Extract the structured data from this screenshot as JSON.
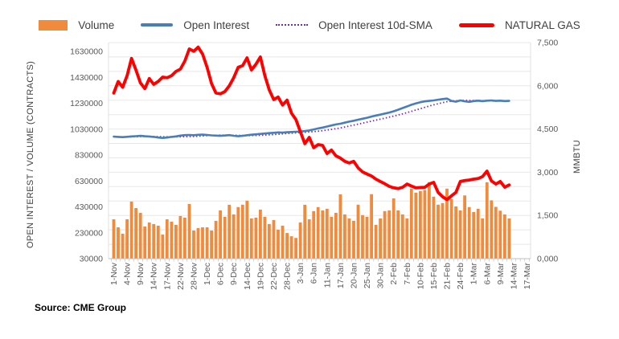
{
  "legend": [
    {
      "label": "Volume",
      "swatch": "bar-swatch",
      "color": "#F08A3C"
    },
    {
      "label": "Open Interest",
      "swatch": "line-swatch",
      "color": "#4A7EBB"
    },
    {
      "label": "Open Interest 10d-SMA",
      "swatch": "dotted-swatch",
      "color": "#7030A0"
    },
    {
      "label": "NATURAL GAS",
      "swatch": "thick-line-swatch",
      "color": "#FF0000"
    }
  ],
  "source_note": "Source: CME Group",
  "chart_data": {
    "type": "combo",
    "title": "",
    "left_axis": {
      "title": "OPEN INTEREST / VOLUME (CONTRACTS)",
      "ticks": [
        30000,
        230000,
        430000,
        630000,
        830000,
        1030000,
        1230000,
        1430000,
        1630000
      ],
      "min": 30000,
      "max": 1630000,
      "grid": false
    },
    "right_axis": {
      "title": "MMBTU",
      "tick_labels": [
        "0,000",
        "1,500",
        "3,000",
        "4,500",
        "6,000",
        "7,500"
      ],
      "tick_values": [
        0,
        1500,
        3000,
        4500,
        6000,
        7500
      ],
      "min": 0,
      "max": 7500,
      "grid_step": 500,
      "grid": true
    },
    "x_axis": {
      "labels": [
        "1-Nov",
        "4-Nov",
        "9-Nov",
        "14-Nov",
        "17-Nov",
        "22-Nov",
        "28-Nov",
        "1-Dec",
        "6-Dec",
        "9-Dec",
        "14-Dec",
        "19-Dec",
        "22-Dec",
        "28-Dec",
        "3-Jan",
        "6-Jan",
        "11-Jan",
        "17-Jan",
        "20-Jan",
        "25-Jan",
        "30-Jan",
        "2-Feb",
        "7-Feb",
        "10-Feb",
        "15-Feb",
        "21-Feb",
        "24-Feb",
        "1-Mar",
        "6-Mar",
        "9-Mar",
        "14-Mar",
        "17-Mar"
      ],
      "label_every": 3,
      "total_slots": 94
    },
    "dates": [
      "1-Nov",
      "2-Nov",
      "3-Nov",
      "4-Nov",
      "7-Nov",
      "8-Nov",
      "9-Nov",
      "10-Nov",
      "11-Nov",
      "14-Nov",
      "15-Nov",
      "16-Nov",
      "17-Nov",
      "18-Nov",
      "21-Nov",
      "22-Nov",
      "23-Nov",
      "25-Nov",
      "28-Nov",
      "29-Nov",
      "30-Nov",
      "1-Dec",
      "2-Dec",
      "5-Dec",
      "6-Dec",
      "7-Dec",
      "8-Dec",
      "9-Dec",
      "12-Dec",
      "13-Dec",
      "14-Dec",
      "15-Dec",
      "16-Dec",
      "19-Dec",
      "20-Dec",
      "21-Dec",
      "22-Dec",
      "23-Dec",
      "27-Dec",
      "28-Dec",
      "29-Dec",
      "30-Dec",
      "3-Jan",
      "4-Jan",
      "5-Jan",
      "6-Jan",
      "9-Jan",
      "10-Jan",
      "11-Jan",
      "12-Jan",
      "13-Jan",
      "17-Jan",
      "18-Jan",
      "19-Jan",
      "20-Jan",
      "23-Jan",
      "24-Jan",
      "25-Jan",
      "26-Jan",
      "27-Jan",
      "30-Jan",
      "31-Jan",
      "1-Feb",
      "2-Feb",
      "3-Feb",
      "6-Feb",
      "7-Feb",
      "8-Feb",
      "9-Feb",
      "10-Feb",
      "13-Feb",
      "14-Feb",
      "15-Feb",
      "16-Feb",
      "17-Feb",
      "21-Feb",
      "22-Feb",
      "23-Feb",
      "24-Feb",
      "27-Feb",
      "28-Feb",
      "1-Mar",
      "2-Mar",
      "3-Mar",
      "6-Mar",
      "7-Mar",
      "8-Mar",
      "9-Mar",
      "10-Mar",
      "13-Mar"
    ],
    "series": [
      {
        "name": "Volume",
        "type": "bar",
        "axis": "left",
        "color": "#F08A3C",
        "values": [
          334000,
          272000,
          223000,
          334000,
          471000,
          421000,
          384000,
          278000,
          310000,
          297000,
          285000,
          216000,
          334000,
          316000,
          291000,
          359000,
          347000,
          452000,
          247000,
          266000,
          272000,
          272000,
          247000,
          322000,
          403000,
          353000,
          446000,
          372000,
          428000,
          447000,
          478000,
          341000,
          347000,
          409000,
          353000,
          297000,
          328000,
          254000,
          285000,
          228000,
          203000,
          190000,
          310000,
          446000,
          334000,
          397000,
          428000,
          403000,
          415000,
          353000,
          384000,
          527000,
          372000,
          341000,
          323000,
          447000,
          366000,
          353000,
          528000,
          291000,
          341000,
          397000,
          403000,
          496000,
          403000,
          372000,
          341000,
          571000,
          540000,
          552000,
          559000,
          621000,
          509000,
          447000,
          459000,
          571000,
          490000,
          434000,
          403000,
          518000,
          428000,
          390000,
          415000,
          341000,
          620000,
          480000,
          430000,
          400000,
          372000,
          341000
        ]
      },
      {
        "name": "Open Interest",
        "type": "line",
        "axis": "left",
        "color": "#4A7EBB",
        "values": [
          972000,
          970000,
          968000,
          971000,
          974000,
          976000,
          978000,
          975000,
          973000,
          970000,
          965000,
          962000,
          965000,
          970000,
          974000,
          980000,
          984000,
          985000,
          983000,
          986000,
          988000,
          985000,
          982000,
          980000,
          978000,
          981000,
          984000,
          979000,
          975000,
          978000,
          983000,
          987000,
          990000,
          993000,
          996000,
          999000,
          1002000,
          1005000,
          1003000,
          1006000,
          1008000,
          1010000,
          1012000,
          1015000,
          1020000,
          1028000,
          1035000,
          1042000,
          1050000,
          1058000,
          1066000,
          1072000,
          1080000,
          1088000,
          1095000,
          1103000,
          1110000,
          1118000,
          1127000,
          1135000,
          1142000,
          1150000,
          1158000,
          1168000,
          1180000,
          1193000,
          1205000,
          1218000,
          1228000,
          1238000,
          1244000,
          1248000,
          1252000,
          1257000,
          1262000,
          1266000,
          1248000,
          1242000,
          1252000,
          1245000,
          1240000,
          1247000,
          1250000,
          1246000,
          1250000,
          1252000,
          1248000,
          1250000,
          1247000,
          1248000
        ]
      },
      {
        "name": "Open Interest 10d-SMA",
        "type": "dotted-line",
        "axis": "left",
        "color": "#7030A0",
        "derived": "trailing 10-day simple moving average of Open Interest"
      },
      {
        "name": "NATURAL GAS",
        "type": "line",
        "axis": "right",
        "color": "#FF0000",
        "values": [
          5750,
          6150,
          5950,
          6350,
          6950,
          6550,
          6100,
          5900,
          6250,
          6050,
          6150,
          6300,
          6280,
          6350,
          6500,
          6580,
          6860,
          7280,
          7200,
          7340,
          7100,
          6640,
          6080,
          5750,
          5720,
          5800,
          6000,
          6280,
          6640,
          6700,
          6970,
          6550,
          6750,
          7000,
          6360,
          5860,
          5520,
          5610,
          5330,
          5500,
          5050,
          4830,
          4410,
          3990,
          4210,
          3850,
          3960,
          3930,
          3650,
          3770,
          3570,
          3490,
          3380,
          3320,
          3380,
          3150,
          3010,
          2940,
          2870,
          2760,
          2680,
          2600,
          2510,
          2460,
          2430,
          2480,
          2590,
          2520,
          2460,
          2470,
          2480,
          2590,
          2650,
          2300,
          2150,
          2050,
          2180,
          2300,
          2680,
          2710,
          2730,
          2760,
          2780,
          2850,
          3040,
          2700,
          2590,
          2680,
          2480,
          2560
        ]
      }
    ]
  }
}
